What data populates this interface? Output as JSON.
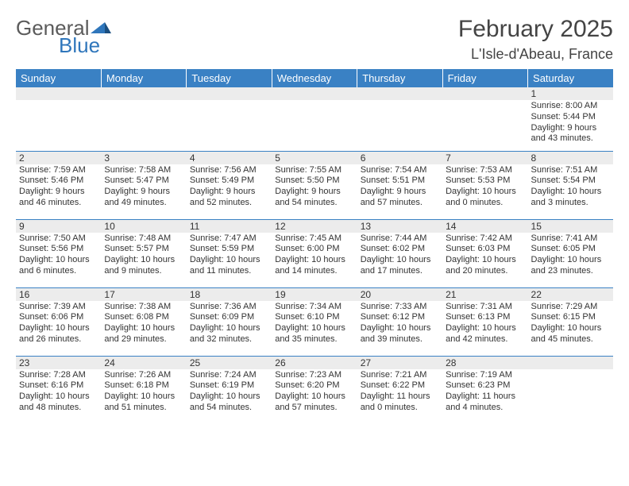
{
  "logo": {
    "word1": "General",
    "word2": "Blue",
    "icon_color": "#2f76bb"
  },
  "title": "February 2025",
  "location": "L'Isle-d'Abeau, France",
  "header_bg": "#3a81c4",
  "weekdays": [
    "Sunday",
    "Monday",
    "Tuesday",
    "Wednesday",
    "Thursday",
    "Friday",
    "Saturday"
  ],
  "weeks": [
    [
      {
        "n": "",
        "sr": "",
        "ss": "",
        "dl": ""
      },
      {
        "n": "",
        "sr": "",
        "ss": "",
        "dl": ""
      },
      {
        "n": "",
        "sr": "",
        "ss": "",
        "dl": ""
      },
      {
        "n": "",
        "sr": "",
        "ss": "",
        "dl": ""
      },
      {
        "n": "",
        "sr": "",
        "ss": "",
        "dl": ""
      },
      {
        "n": "",
        "sr": "",
        "ss": "",
        "dl": ""
      },
      {
        "n": "1",
        "sr": "Sunrise: 8:00 AM",
        "ss": "Sunset: 5:44 PM",
        "dl": "Daylight: 9 hours and 43 minutes."
      }
    ],
    [
      {
        "n": "2",
        "sr": "Sunrise: 7:59 AM",
        "ss": "Sunset: 5:46 PM",
        "dl": "Daylight: 9 hours and 46 minutes."
      },
      {
        "n": "3",
        "sr": "Sunrise: 7:58 AM",
        "ss": "Sunset: 5:47 PM",
        "dl": "Daylight: 9 hours and 49 minutes."
      },
      {
        "n": "4",
        "sr": "Sunrise: 7:56 AM",
        "ss": "Sunset: 5:49 PM",
        "dl": "Daylight: 9 hours and 52 minutes."
      },
      {
        "n": "5",
        "sr": "Sunrise: 7:55 AM",
        "ss": "Sunset: 5:50 PM",
        "dl": "Daylight: 9 hours and 54 minutes."
      },
      {
        "n": "6",
        "sr": "Sunrise: 7:54 AM",
        "ss": "Sunset: 5:51 PM",
        "dl": "Daylight: 9 hours and 57 minutes."
      },
      {
        "n": "7",
        "sr": "Sunrise: 7:53 AM",
        "ss": "Sunset: 5:53 PM",
        "dl": "Daylight: 10 hours and 0 minutes."
      },
      {
        "n": "8",
        "sr": "Sunrise: 7:51 AM",
        "ss": "Sunset: 5:54 PM",
        "dl": "Daylight: 10 hours and 3 minutes."
      }
    ],
    [
      {
        "n": "9",
        "sr": "Sunrise: 7:50 AM",
        "ss": "Sunset: 5:56 PM",
        "dl": "Daylight: 10 hours and 6 minutes."
      },
      {
        "n": "10",
        "sr": "Sunrise: 7:48 AM",
        "ss": "Sunset: 5:57 PM",
        "dl": "Daylight: 10 hours and 9 minutes."
      },
      {
        "n": "11",
        "sr": "Sunrise: 7:47 AM",
        "ss": "Sunset: 5:59 PM",
        "dl": "Daylight: 10 hours and 11 minutes."
      },
      {
        "n": "12",
        "sr": "Sunrise: 7:45 AM",
        "ss": "Sunset: 6:00 PM",
        "dl": "Daylight: 10 hours and 14 minutes."
      },
      {
        "n": "13",
        "sr": "Sunrise: 7:44 AM",
        "ss": "Sunset: 6:02 PM",
        "dl": "Daylight: 10 hours and 17 minutes."
      },
      {
        "n": "14",
        "sr": "Sunrise: 7:42 AM",
        "ss": "Sunset: 6:03 PM",
        "dl": "Daylight: 10 hours and 20 minutes."
      },
      {
        "n": "15",
        "sr": "Sunrise: 7:41 AM",
        "ss": "Sunset: 6:05 PM",
        "dl": "Daylight: 10 hours and 23 minutes."
      }
    ],
    [
      {
        "n": "16",
        "sr": "Sunrise: 7:39 AM",
        "ss": "Sunset: 6:06 PM",
        "dl": "Daylight: 10 hours and 26 minutes."
      },
      {
        "n": "17",
        "sr": "Sunrise: 7:38 AM",
        "ss": "Sunset: 6:08 PM",
        "dl": "Daylight: 10 hours and 29 minutes."
      },
      {
        "n": "18",
        "sr": "Sunrise: 7:36 AM",
        "ss": "Sunset: 6:09 PM",
        "dl": "Daylight: 10 hours and 32 minutes."
      },
      {
        "n": "19",
        "sr": "Sunrise: 7:34 AM",
        "ss": "Sunset: 6:10 PM",
        "dl": "Daylight: 10 hours and 35 minutes."
      },
      {
        "n": "20",
        "sr": "Sunrise: 7:33 AM",
        "ss": "Sunset: 6:12 PM",
        "dl": "Daylight: 10 hours and 39 minutes."
      },
      {
        "n": "21",
        "sr": "Sunrise: 7:31 AM",
        "ss": "Sunset: 6:13 PM",
        "dl": "Daylight: 10 hours and 42 minutes."
      },
      {
        "n": "22",
        "sr": "Sunrise: 7:29 AM",
        "ss": "Sunset: 6:15 PM",
        "dl": "Daylight: 10 hours and 45 minutes."
      }
    ],
    [
      {
        "n": "23",
        "sr": "Sunrise: 7:28 AM",
        "ss": "Sunset: 6:16 PM",
        "dl": "Daylight: 10 hours and 48 minutes."
      },
      {
        "n": "24",
        "sr": "Sunrise: 7:26 AM",
        "ss": "Sunset: 6:18 PM",
        "dl": "Daylight: 10 hours and 51 minutes."
      },
      {
        "n": "25",
        "sr": "Sunrise: 7:24 AM",
        "ss": "Sunset: 6:19 PM",
        "dl": "Daylight: 10 hours and 54 minutes."
      },
      {
        "n": "26",
        "sr": "Sunrise: 7:23 AM",
        "ss": "Sunset: 6:20 PM",
        "dl": "Daylight: 10 hours and 57 minutes."
      },
      {
        "n": "27",
        "sr": "Sunrise: 7:21 AM",
        "ss": "Sunset: 6:22 PM",
        "dl": "Daylight: 11 hours and 0 minutes."
      },
      {
        "n": "28",
        "sr": "Sunrise: 7:19 AM",
        "ss": "Sunset: 6:23 PM",
        "dl": "Daylight: 11 hours and 4 minutes."
      },
      {
        "n": "",
        "sr": "",
        "ss": "",
        "dl": ""
      }
    ]
  ]
}
